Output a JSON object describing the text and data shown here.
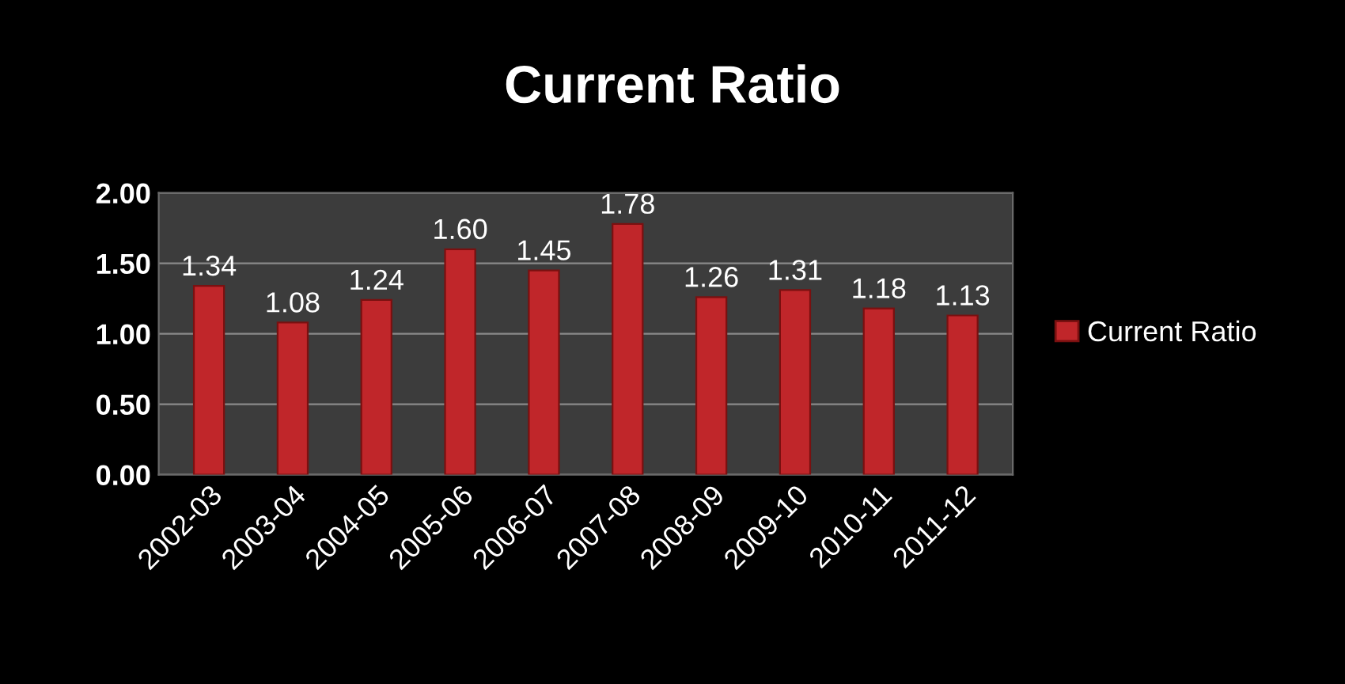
{
  "chart_data": {
    "type": "bar",
    "title": "Current Ratio",
    "categories": [
      "2002-03",
      "2003-04",
      "2004-05",
      "2005-06",
      "2006-07",
      "2007-08",
      "2008-09",
      "2009-10",
      "2010-11",
      "2011-12"
    ],
    "series": [
      {
        "name": "Current Ratio",
        "color": "#c0262a",
        "values": [
          1.34,
          1.08,
          1.24,
          1.6,
          1.45,
          1.78,
          1.26,
          1.31,
          1.18,
          1.13
        ],
        "value_labels": [
          "1.34",
          "1.08",
          "1.24",
          "1.60",
          "1.45",
          "1.78",
          "1.26",
          "1.31",
          "1.18",
          "1.13"
        ]
      }
    ],
    "ylim": [
      0,
      2
    ],
    "yticks": [
      {
        "value": 0,
        "label": "0.00"
      },
      {
        "value": 0.5,
        "label": "0.50"
      },
      {
        "value": 1,
        "label": "1.00"
      },
      {
        "value": 1.5,
        "label": "1.50"
      },
      {
        "value": 2,
        "label": "2.00"
      }
    ],
    "grid": "y",
    "legend": "right"
  }
}
